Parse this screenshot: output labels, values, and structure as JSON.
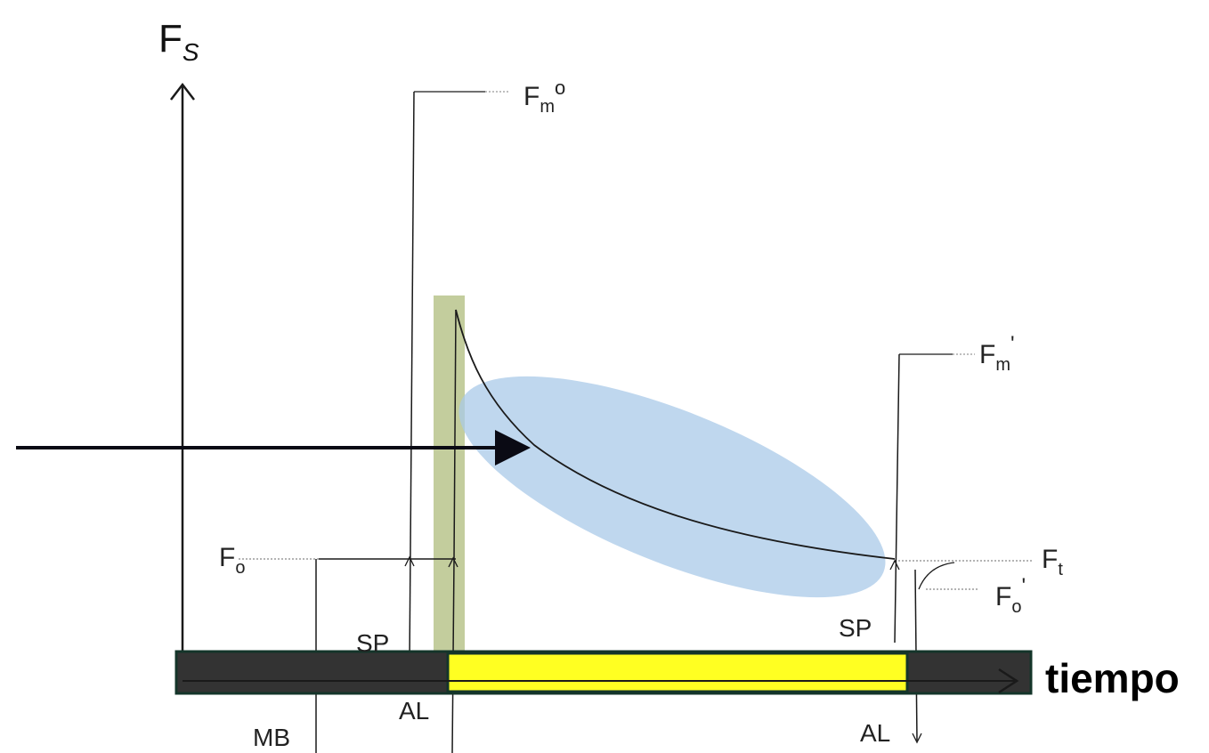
{
  "labels": {
    "y_axis_main": "F",
    "y_axis_sub": "S",
    "fm0_main": "F",
    "fm0_sub": "m",
    "fm0_sup": "o",
    "fmp_main": "F",
    "fmp_sub": "m",
    "fmp_sup": "'",
    "fo_main": "F",
    "fo_sub": "o",
    "ft_main": "F",
    "ft_sub": "t",
    "fop_main": "F",
    "fop_sub": "o",
    "fop_sup": "'",
    "sp_left": "SP",
    "sp_right": "SP",
    "mb": "MB",
    "al_left": "AL",
    "al_right": "AL",
    "x_axis": "tiempo"
  },
  "colors": {
    "line": "#1a1a1a",
    "timeline_bar": "#333333",
    "timeline_border": "#14352a",
    "highlight_yellow": "#ffff22",
    "vertical_highlight": "#b9c48c",
    "ellipse_fill": "#a9c9e8",
    "arrow": "#0a0a14"
  }
}
